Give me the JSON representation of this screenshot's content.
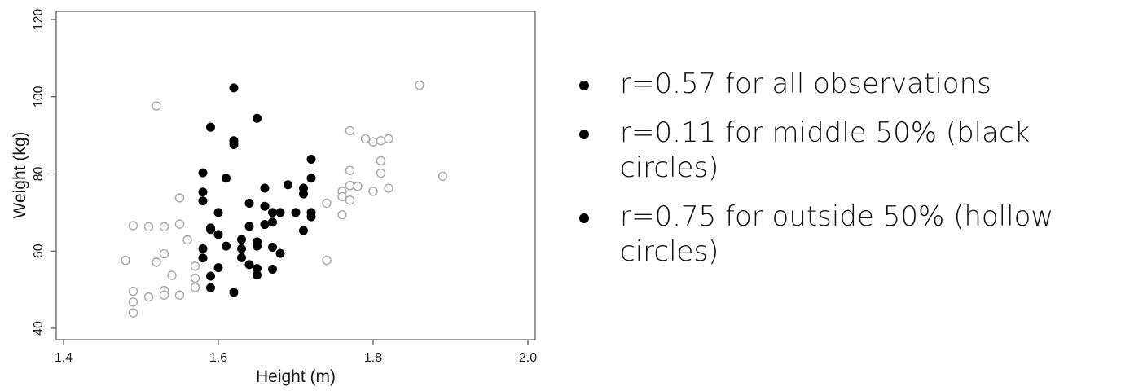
{
  "chart_data": {
    "type": "scatter",
    "xlabel": "Height (m)",
    "ylabel": "Weight (kg)",
    "xlim": [
      1.4,
      2.0
    ],
    "ylim": [
      40,
      120
    ],
    "xticks": [
      1.4,
      1.6,
      1.8,
      2.0
    ],
    "yticks": [
      40,
      60,
      80,
      100,
      120
    ],
    "xtick_labels": [
      "1.4",
      "1.6",
      "1.8",
      "2.0"
    ],
    "ytick_labels": [
      "40",
      "60",
      "80",
      "100",
      "120"
    ],
    "grid": false,
    "series": [
      {
        "style": "filled",
        "color": "#000000",
        "points": [
          [
            1.62,
            102.3
          ],
          [
            1.65,
            94.4
          ],
          [
            1.59,
            92.1
          ],
          [
            1.62,
            88.6
          ],
          [
            1.62,
            87.6
          ],
          [
            1.72,
            83.8
          ],
          [
            1.58,
            80.3
          ],
          [
            1.61,
            78.9
          ],
          [
            1.72,
            78.9
          ],
          [
            1.69,
            77.2
          ],
          [
            1.66,
            76.3
          ],
          [
            1.71,
            76.3
          ],
          [
            1.58,
            75.3
          ],
          [
            1.71,
            74.8
          ],
          [
            1.58,
            73.0
          ],
          [
            1.64,
            72.4
          ],
          [
            1.66,
            71.6
          ],
          [
            1.6,
            70.0
          ],
          [
            1.67,
            70.0
          ],
          [
            1.68,
            70.0
          ],
          [
            1.7,
            70.0
          ],
          [
            1.72,
            70.0
          ],
          [
            1.72,
            68.9
          ],
          [
            1.67,
            67.5
          ],
          [
            1.66,
            66.9
          ],
          [
            1.64,
            66.4
          ],
          [
            1.59,
            66.0
          ],
          [
            1.59,
            65.6
          ],
          [
            1.71,
            65.3
          ],
          [
            1.6,
            64.3
          ],
          [
            1.63,
            63.0
          ],
          [
            1.65,
            62.4
          ],
          [
            1.61,
            61.3
          ],
          [
            1.65,
            61.3
          ],
          [
            1.67,
            61.0
          ],
          [
            1.63,
            60.6
          ],
          [
            1.58,
            60.6
          ],
          [
            1.68,
            59.4
          ],
          [
            1.63,
            58.3
          ],
          [
            1.58,
            58.2
          ],
          [
            1.64,
            56.5
          ],
          [
            1.6,
            55.7
          ],
          [
            1.65,
            55.5
          ],
          [
            1.67,
            55.3
          ],
          [
            1.65,
            53.8
          ],
          [
            1.59,
            53.5
          ],
          [
            1.59,
            50.5
          ],
          [
            1.62,
            49.3
          ]
        ]
      },
      {
        "style": "hollow",
        "color": "#a8a8a8",
        "points": [
          [
            1.52,
            97.6
          ],
          [
            1.86,
            103.0
          ],
          [
            1.77,
            91.2
          ],
          [
            1.79,
            89.1
          ],
          [
            1.8,
            88.3
          ],
          [
            1.81,
            88.6
          ],
          [
            1.82,
            89.1
          ],
          [
            1.81,
            83.4
          ],
          [
            1.81,
            80.2
          ],
          [
            1.77,
            80.9
          ],
          [
            1.89,
            79.4
          ],
          [
            1.77,
            77.0
          ],
          [
            1.78,
            76.8
          ],
          [
            1.82,
            76.3
          ],
          [
            1.8,
            75.5
          ],
          [
            1.76,
            75.5
          ],
          [
            1.76,
            74.1
          ],
          [
            1.77,
            73.2
          ],
          [
            1.74,
            72.4
          ],
          [
            1.76,
            69.4
          ],
          [
            1.55,
            73.8
          ],
          [
            1.49,
            66.6
          ],
          [
            1.51,
            66.3
          ],
          [
            1.53,
            66.3
          ],
          [
            1.55,
            67.0
          ],
          [
            1.56,
            62.9
          ],
          [
            1.53,
            59.3
          ],
          [
            1.52,
            57.1
          ],
          [
            1.52,
            57.1
          ],
          [
            1.48,
            57.6
          ],
          [
            1.74,
            57.6
          ],
          [
            1.57,
            56.1
          ],
          [
            1.54,
            53.7
          ],
          [
            1.57,
            53.0
          ],
          [
            1.57,
            50.6
          ],
          [
            1.49,
            49.6
          ],
          [
            1.53,
            49.8
          ],
          [
            1.53,
            48.6
          ],
          [
            1.55,
            48.6
          ],
          [
            1.51,
            48.1
          ],
          [
            1.49,
            46.8
          ],
          [
            1.49,
            44.0
          ]
        ]
      }
    ]
  },
  "bullets": [
    {
      "text": "r=0.57 for all observations"
    },
    {
      "text": "r=0.11 for middle 50% (black circles)"
    },
    {
      "text": "r=0.75 for outside 50% (hollow circles)"
    }
  ]
}
